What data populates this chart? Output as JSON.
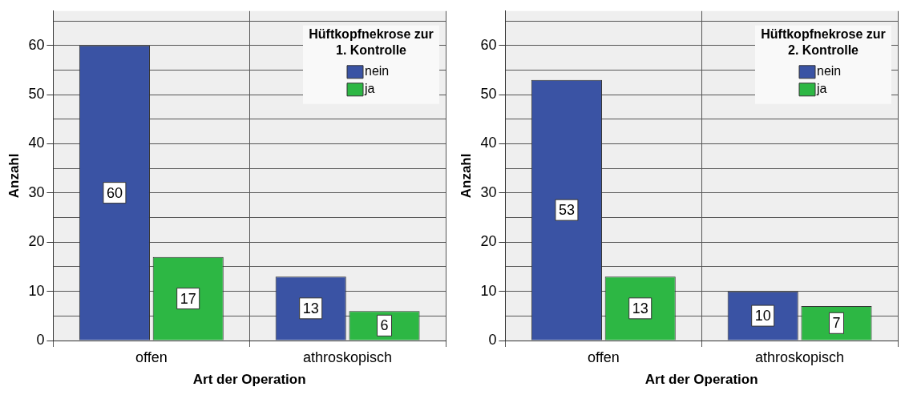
{
  "chart_data": [
    {
      "type": "bar",
      "categories": [
        "offen",
        "athroskopisch"
      ],
      "xlabel": "Art der Operation",
      "ylabel": "Anzahl",
      "legend_title": "Hüftkopfnekrose zur 1. Kontrolle",
      "legend": "top right",
      "grid": true,
      "data_labels": true,
      "ylim": [
        0,
        67
      ],
      "yticks": [
        0,
        {
          "value": 5,
          "label": null
        },
        10,
        {
          "value": 15,
          "label": null
        },
        20,
        {
          "value": 25,
          "label": null
        },
        30,
        {
          "value": 35,
          "label": null
        },
        40,
        {
          "value": 45,
          "label": null
        },
        50,
        {
          "value": 55,
          "label": null
        },
        60,
        {
          "value": 65,
          "label": null
        }
      ],
      "series": [
        {
          "name": "nein",
          "color": "#3a53a4",
          "values": [
            60,
            13
          ]
        },
        {
          "name": "ja",
          "color": "#2db744",
          "values": [
            17,
            6
          ]
        }
      ]
    },
    {
      "type": "bar",
      "categories": [
        "offen",
        "athroskopisch"
      ],
      "xlabel": "Art der Operation",
      "ylabel": "Anzahl",
      "legend_title": "Hüftkopfnekrose zur 2. Kontrolle",
      "legend": "top right",
      "grid": true,
      "data_labels": true,
      "ylim": [
        0,
        67
      ],
      "yticks": [
        0,
        {
          "value": 5,
          "label": null
        },
        10,
        {
          "value": 15,
          "label": null
        },
        20,
        {
          "value": 25,
          "label": null
        },
        30,
        {
          "value": 35,
          "label": null
        },
        40,
        {
          "value": 45,
          "label": null
        },
        50,
        {
          "value": 55,
          "label": null
        },
        60,
        {
          "value": 65,
          "label": null
        }
      ],
      "series": [
        {
          "name": "nein",
          "color": "#3a53a4",
          "values": [
            53,
            10
          ]
        },
        {
          "name": "ja",
          "color": "#2db744",
          "values": [
            13,
            7
          ]
        }
      ]
    }
  ]
}
